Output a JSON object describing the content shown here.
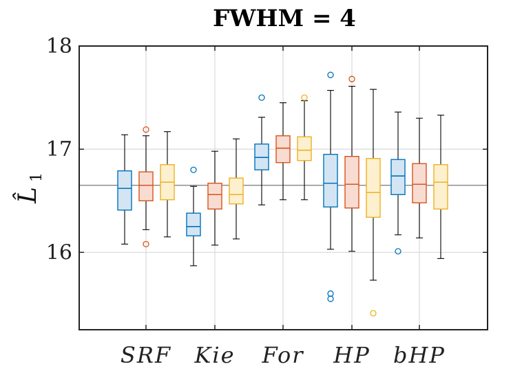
{
  "chart_data": {
    "type": "box",
    "title": "FWHM = 4",
    "ylabel": "L̂",
    "ylabel_subscript": "1",
    "ylim": [
      15.25,
      18.0
    ],
    "yticks": [
      16,
      17,
      18
    ],
    "ytick_labels": [
      "16",
      "17",
      "18"
    ],
    "grid": true,
    "reference_line": 16.65,
    "categories": [
      "SRF",
      "Kie",
      "For",
      "HP",
      "bHP"
    ],
    "series": [
      {
        "color": "#0072BD",
        "fill": "#d3e5f3",
        "boxes": [
          {
            "whisker_low": 16.08,
            "q1": 16.41,
            "median": 16.62,
            "q3": 16.79,
            "whisker_high": 17.14,
            "outliers": []
          },
          {
            "whisker_low": 15.87,
            "q1": 16.16,
            "median": 16.25,
            "q3": 16.38,
            "whisker_high": 16.64,
            "outliers": [
              16.8
            ]
          },
          {
            "whisker_low": 16.46,
            "q1": 16.8,
            "median": 16.92,
            "q3": 17.05,
            "whisker_high": 17.31,
            "outliers": [
              17.5
            ]
          },
          {
            "whisker_low": 16.03,
            "q1": 16.44,
            "median": 16.67,
            "q3": 16.95,
            "whisker_high": 17.57,
            "outliers": [
              17.72,
              15.6,
              15.55
            ]
          },
          {
            "whisker_low": 16.17,
            "q1": 16.56,
            "median": 16.74,
            "q3": 16.9,
            "whisker_high": 17.36,
            "outliers": [
              16.01
            ]
          }
        ]
      },
      {
        "color": "#D95319",
        "fill": "#f8dcd2",
        "boxes": [
          {
            "whisker_low": 16.22,
            "q1": 16.5,
            "median": 16.65,
            "q3": 16.78,
            "whisker_high": 17.13,
            "outliers": [
              17.19,
              16.08
            ]
          },
          {
            "whisker_low": 16.07,
            "q1": 16.42,
            "median": 16.56,
            "q3": 16.67,
            "whisker_high": 16.98,
            "outliers": []
          },
          {
            "whisker_low": 16.51,
            "q1": 16.87,
            "median": 17.01,
            "q3": 17.13,
            "whisker_high": 17.45,
            "outliers": []
          },
          {
            "whisker_low": 16.01,
            "q1": 16.43,
            "median": 16.66,
            "q3": 16.93,
            "whisker_high": 17.61,
            "outliers": [
              17.68
            ]
          },
          {
            "whisker_low": 16.14,
            "q1": 16.48,
            "median": 16.66,
            "q3": 16.86,
            "whisker_high": 17.3,
            "outliers": []
          }
        ]
      },
      {
        "color": "#EDB120",
        "fill": "#fdf0cf",
        "boxes": [
          {
            "whisker_low": 16.15,
            "q1": 16.51,
            "median": 16.68,
            "q3": 16.85,
            "whisker_high": 17.17,
            "outliers": []
          },
          {
            "whisker_low": 16.13,
            "q1": 16.47,
            "median": 16.56,
            "q3": 16.72,
            "whisker_high": 17.1,
            "outliers": []
          },
          {
            "whisker_low": 16.51,
            "q1": 16.89,
            "median": 16.99,
            "q3": 17.12,
            "whisker_high": 17.47,
            "outliers": [
              17.5
            ]
          },
          {
            "whisker_low": 15.73,
            "q1": 16.34,
            "median": 16.58,
            "q3": 16.91,
            "whisker_high": 17.58,
            "outliers": [
              15.41
            ]
          },
          {
            "whisker_low": 15.94,
            "q1": 16.42,
            "median": 16.68,
            "q3": 16.85,
            "whisker_high": 17.33,
            "outliers": []
          }
        ]
      }
    ]
  }
}
